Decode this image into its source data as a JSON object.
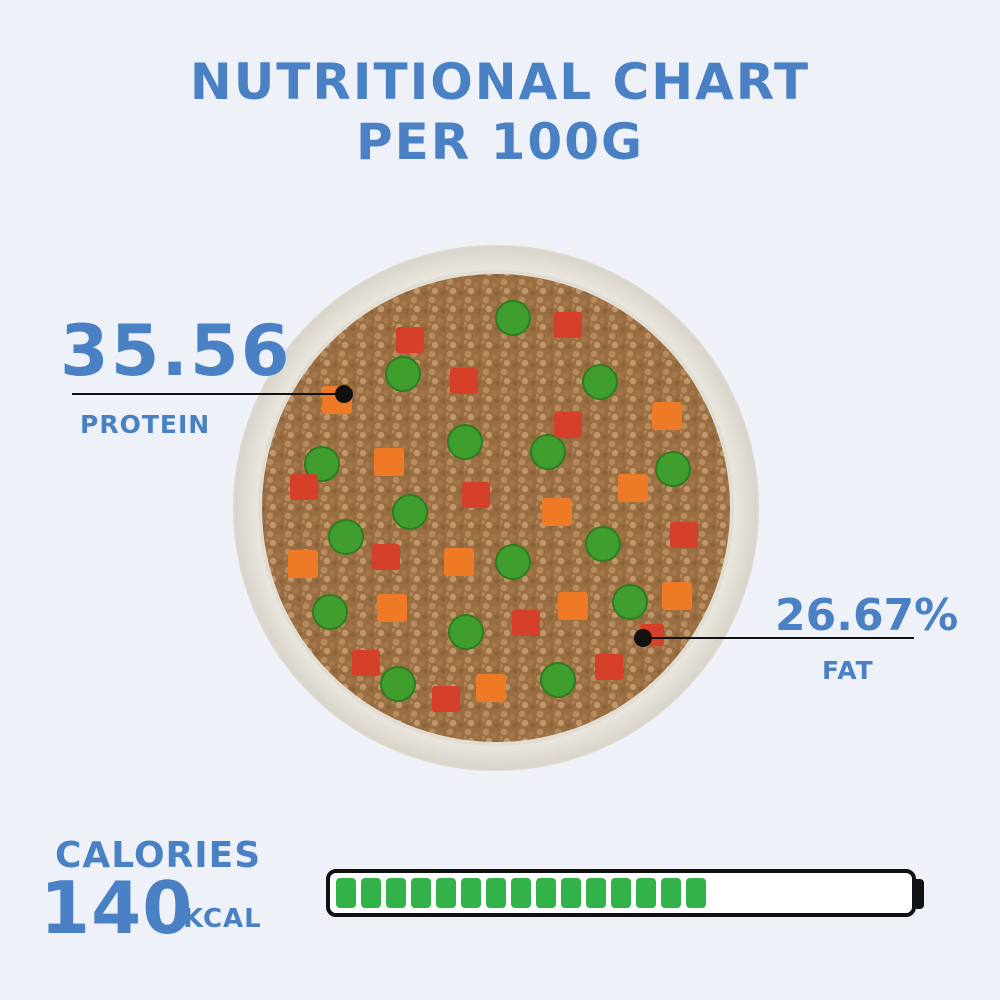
{
  "title": {
    "line1": "NUTRITIONAL CHART",
    "line2": "PER 100G"
  },
  "protein": {
    "value": "35.56",
    "label": "PROTEIN"
  },
  "fat": {
    "value": "26.67%",
    "label": "FAT"
  },
  "calories": {
    "label": "CALORIES",
    "value": "140",
    "unit": "KCAL",
    "bar_filled_cells": 15,
    "bar_total_cells": 23
  },
  "colors": {
    "accent": "#4a80c4",
    "bar_fill": "#33b24a",
    "background": "#eef2f8"
  }
}
